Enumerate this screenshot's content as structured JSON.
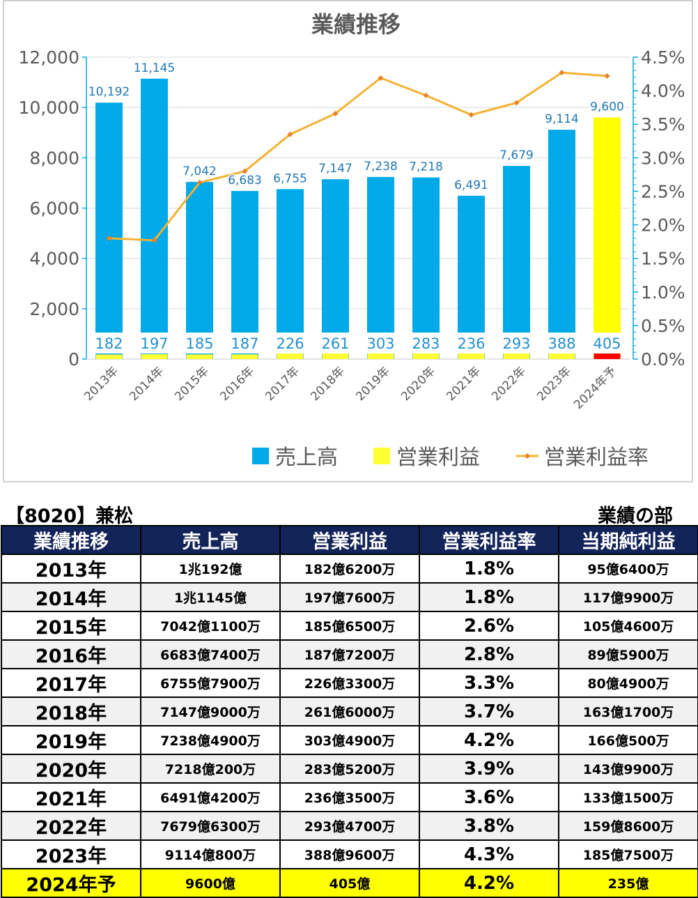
{
  "chart_data": {
    "type": "bar",
    "title": "業績推移",
    "categories": [
      "2013年",
      "2014年",
      "2015年",
      "2016年",
      "2017年",
      "2018年",
      "2019年",
      "2020年",
      "2021年",
      "2022年",
      "2023年",
      "2024年予"
    ],
    "series": [
      {
        "name": "売上高",
        "axis": "left",
        "color": "#00a9e8",
        "values": [
          10192,
          11145,
          7042,
          6683,
          6755,
          7147,
          7238,
          7218,
          6491,
          7679,
          9114,
          9600
        ],
        "labels": [
          "10,192",
          "11,145",
          "7,042",
          "6,683",
          "6,755",
          "7,147",
          "7,238",
          "7,218",
          "6,491",
          "7,679",
          "9,114",
          "9,600"
        ]
      },
      {
        "name": "営業利益",
        "axis": "left",
        "color": "#ffff33",
        "values": [
          182,
          197,
          185,
          187,
          226,
          261,
          303,
          283,
          236,
          293,
          388,
          405
        ]
      },
      {
        "name": "営業利益率",
        "axis": "right",
        "type": "line",
        "color": "#f4b234",
        "values": [
          1.8,
          1.77,
          2.63,
          2.8,
          3.35,
          3.66,
          4.19,
          3.93,
          3.64,
          3.82,
          4.27,
          4.22
        ]
      }
    ],
    "forecast_colors": {
      "revenue": "#ffff00",
      "profit": "#ff0000"
    },
    "yleft_ticks": [
      "0",
      "2,000",
      "4,000",
      "6,000",
      "8,000",
      "10,000",
      "12,000"
    ],
    "ylim_left": [
      0,
      12000
    ],
    "yright_ticks": [
      "0.0%",
      "0.5%",
      "1.0%",
      "1.5%",
      "2.0%",
      "2.5%",
      "3.0%",
      "3.5%",
      "4.0%",
      "4.5%"
    ],
    "ylim_right": [
      0,
      4.5
    ],
    "grid": true,
    "legend_position": "bottom-right"
  },
  "info": {
    "company": "【8020】兼松",
    "section": "業績の部"
  },
  "table": {
    "headers": [
      "業績推移",
      "売上高",
      "営業利益",
      "営業利益率",
      "当期純利益"
    ],
    "rows": [
      [
        "2013年",
        "1兆192億",
        "182億6200万",
        "1.8%",
        "95億6400万"
      ],
      [
        "2014年",
        "1兆1145億",
        "197億7600万",
        "1.8%",
        "117億9900万"
      ],
      [
        "2015年",
        "7042億1100万",
        "185億6500万",
        "2.6%",
        "105億4600万"
      ],
      [
        "2016年",
        "6683億7400万",
        "187億7200万",
        "2.8%",
        "89億5900万"
      ],
      [
        "2017年",
        "6755億7900万",
        "226億3300万",
        "3.3%",
        "80億4900万"
      ],
      [
        "2018年",
        "7147億9000万",
        "261億6000万",
        "3.7%",
        "163億1700万"
      ],
      [
        "2019年",
        "7238億4900万",
        "303億4900万",
        "4.2%",
        "166億500万"
      ],
      [
        "2020年",
        "7218億200万",
        "283億5200万",
        "3.9%",
        "143億9900万"
      ],
      [
        "2021年",
        "6491億4200万",
        "236億3500万",
        "3.6%",
        "133億1500万"
      ],
      [
        "2022年",
        "7679億6300万",
        "293億4700万",
        "3.8%",
        "159億8600万"
      ],
      [
        "2023年",
        "9114億800万",
        "388億9600万",
        "4.3%",
        "185億7500万"
      ],
      [
        "2024年予",
        "9600億",
        "405億",
        "4.2%",
        "235億"
      ]
    ]
  }
}
